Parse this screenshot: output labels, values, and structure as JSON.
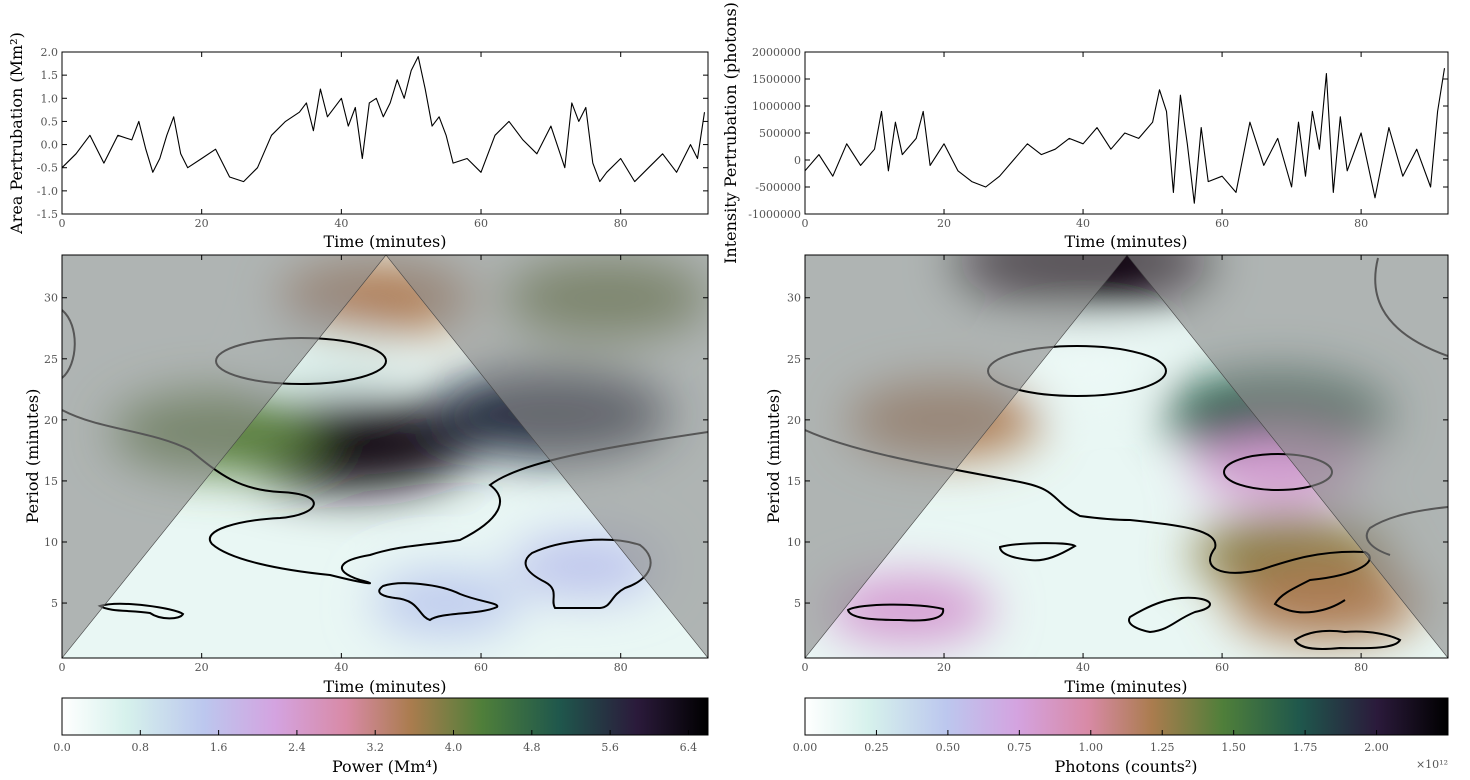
{
  "chart_data": [
    {
      "type": "line",
      "ylabel": "Area Pertrubation (Mm²)",
      "xlabel": "Time (minutes)",
      "xlim": [
        0,
        92.5
      ],
      "ylim": [
        -1.5,
        2.0
      ],
      "xticks": [
        "0",
        "20",
        "40",
        "60",
        "80"
      ],
      "yticks": [
        "-1.5",
        "-1.0",
        "-0.5",
        "0.0",
        "0.5",
        "1.0",
        "1.5",
        "2.0"
      ],
      "ytick_values": [
        -1.5,
        -1.0,
        -0.5,
        0.0,
        0.5,
        1.0,
        1.5,
        2.0
      ],
      "x": [
        0,
        2,
        4,
        6,
        8,
        10,
        11,
        12,
        13,
        14,
        15,
        16,
        17,
        18,
        20,
        22,
        24,
        26,
        28,
        30,
        32,
        34,
        35,
        36,
        37,
        38,
        40,
        41,
        42,
        43,
        44,
        45,
        46,
        47,
        48,
        49,
        50,
        51,
        52,
        53,
        54,
        55,
        56,
        58,
        60,
        62,
        64,
        66,
        68,
        70,
        72,
        73,
        74,
        75,
        76,
        77,
        78,
        80,
        82,
        84,
        86,
        88,
        90,
        91,
        92
      ],
      "y": [
        -0.5,
        -0.2,
        0.2,
        -0.4,
        0.2,
        0.1,
        0.5,
        -0.1,
        -0.6,
        -0.3,
        0.2,
        0.6,
        -0.2,
        -0.5,
        -0.3,
        -0.1,
        -0.7,
        -0.8,
        -0.5,
        0.2,
        0.5,
        0.7,
        0.9,
        0.3,
        1.2,
        0.6,
        1.0,
        0.4,
        0.8,
        -0.3,
        0.9,
        1.0,
        0.6,
        0.9,
        1.4,
        1.0,
        1.6,
        1.9,
        1.2,
        0.4,
        0.6,
        0.2,
        -0.4,
        -0.3,
        -0.6,
        0.2,
        0.5,
        0.1,
        -0.2,
        0.4,
        -0.5,
        0.9,
        0.5,
        0.8,
        -0.4,
        -0.8,
        -0.6,
        -0.3,
        -0.8,
        -0.5,
        -0.2,
        -0.6,
        0.0,
        -0.3,
        0.7
      ]
    },
    {
      "type": "line",
      "ylabel": "Intensity Pertrubation (photons)",
      "xlabel": "Time (minutes)",
      "xlim": [
        0,
        92.5
      ],
      "ylim": [
        -1000000,
        2000000
      ],
      "xticks": [
        "0",
        "20",
        "40",
        "60",
        "80"
      ],
      "yticks": [
        "-1000000",
        "-500000",
        "0",
        "500000",
        "1000000",
        "1500000",
        "2000000"
      ],
      "ytick_values": [
        -1000000,
        -500000,
        0,
        500000,
        1000000,
        1500000,
        2000000
      ],
      "x": [
        0,
        2,
        4,
        6,
        8,
        10,
        11,
        12,
        13,
        14,
        16,
        17,
        18,
        20,
        22,
        24,
        26,
        28,
        30,
        32,
        34,
        36,
        38,
        40,
        42,
        44,
        46,
        48,
        50,
        51,
        52,
        53,
        54,
        55,
        56,
        57,
        58,
        60,
        62,
        64,
        66,
        68,
        70,
        71,
        72,
        73,
        74,
        75,
        76,
        77,
        78,
        80,
        82,
        84,
        86,
        88,
        90,
        91,
        92
      ],
      "y": [
        -200000,
        100000,
        -300000,
        300000,
        -100000,
        200000,
        900000,
        -200000,
        700000,
        100000,
        400000,
        900000,
        -100000,
        300000,
        -200000,
        -400000,
        -500000,
        -300000,
        0,
        300000,
        100000,
        200000,
        400000,
        300000,
        600000,
        200000,
        500000,
        400000,
        700000,
        1300000,
        900000,
        -600000,
        1200000,
        300000,
        -800000,
        600000,
        -400000,
        -300000,
        -600000,
        700000,
        -100000,
        400000,
        -500000,
        700000,
        -300000,
        900000,
        200000,
        1600000,
        -600000,
        800000,
        -200000,
        500000,
        -700000,
        600000,
        -300000,
        200000,
        -500000,
        900000,
        1700000
      ]
    },
    {
      "type": "heatmap",
      "ylabel": "Period (minutes)",
      "xlabel": "Time (minutes)",
      "xlim": [
        0,
        92.5
      ],
      "ylim": [
        0.5,
        33.5
      ],
      "xticks": [
        "0",
        "20",
        "40",
        "60",
        "80"
      ],
      "yticks": [
        "5",
        "10",
        "15",
        "20",
        "25",
        "30"
      ],
      "ytick_values": [
        5,
        10,
        15,
        20,
        25,
        30
      ],
      "colorbar": {
        "label": "Power (Mm⁴)",
        "ticks": [
          "0.0",
          "0.8",
          "1.6",
          "2.4",
          "3.2",
          "4.0",
          "4.8",
          "5.6",
          "6.4"
        ],
        "range": [
          0.0,
          6.6
        ]
      },
      "features": [
        {
          "x": 41,
          "y": 18,
          "value": 6.3
        },
        {
          "x": 70,
          "y": 20.5,
          "value": 5.6
        },
        {
          "x": 22,
          "y": 19,
          "value": 4.2
        },
        {
          "x": 45,
          "y": 30,
          "value": 3.5
        },
        {
          "x": 78,
          "y": 30,
          "value": 4.1
        },
        {
          "x": 38,
          "y": 25,
          "value": 0.5
        },
        {
          "x": 75,
          "y": 8,
          "value": 1.5
        },
        {
          "x": 55,
          "y": 5,
          "value": 1.4
        }
      ]
    },
    {
      "type": "heatmap",
      "ylabel": "Period (minutes)",
      "xlabel": "Time (minutes)",
      "xlim": [
        0,
        92.5
      ],
      "ylim": [
        0.5,
        33.5
      ],
      "xticks": [
        "0",
        "20",
        "40",
        "60",
        "80"
      ],
      "yticks": [
        "5",
        "10",
        "15",
        "20",
        "25",
        "30"
      ],
      "ytick_values": [
        5,
        10,
        15,
        20,
        25,
        30
      ],
      "colorbar": {
        "label": "Photons (counts²)",
        "ticks": [
          "0.00",
          "0.25",
          "0.50",
          "0.75",
          "1.00",
          "1.25",
          "1.50",
          "1.75",
          "2.00"
        ],
        "range": [
          0.0,
          2.25
        ],
        "multiplier": "×10¹²"
      },
      "features": [
        {
          "x": 40,
          "y": 33,
          "value": 2.2
        },
        {
          "x": 68,
          "y": 20.5,
          "value": 1.7
        },
        {
          "x": 20,
          "y": 20,
          "value": 1.2
        },
        {
          "x": 40,
          "y": 24.5,
          "value": 0.1
        },
        {
          "x": 70,
          "y": 9,
          "value": 1.3
        },
        {
          "x": 68,
          "y": 16,
          "value": 0.8
        },
        {
          "x": 75,
          "y": 5,
          "value": 1.2
        },
        {
          "x": 15,
          "y": 4.5,
          "value": 0.8
        }
      ]
    }
  ]
}
